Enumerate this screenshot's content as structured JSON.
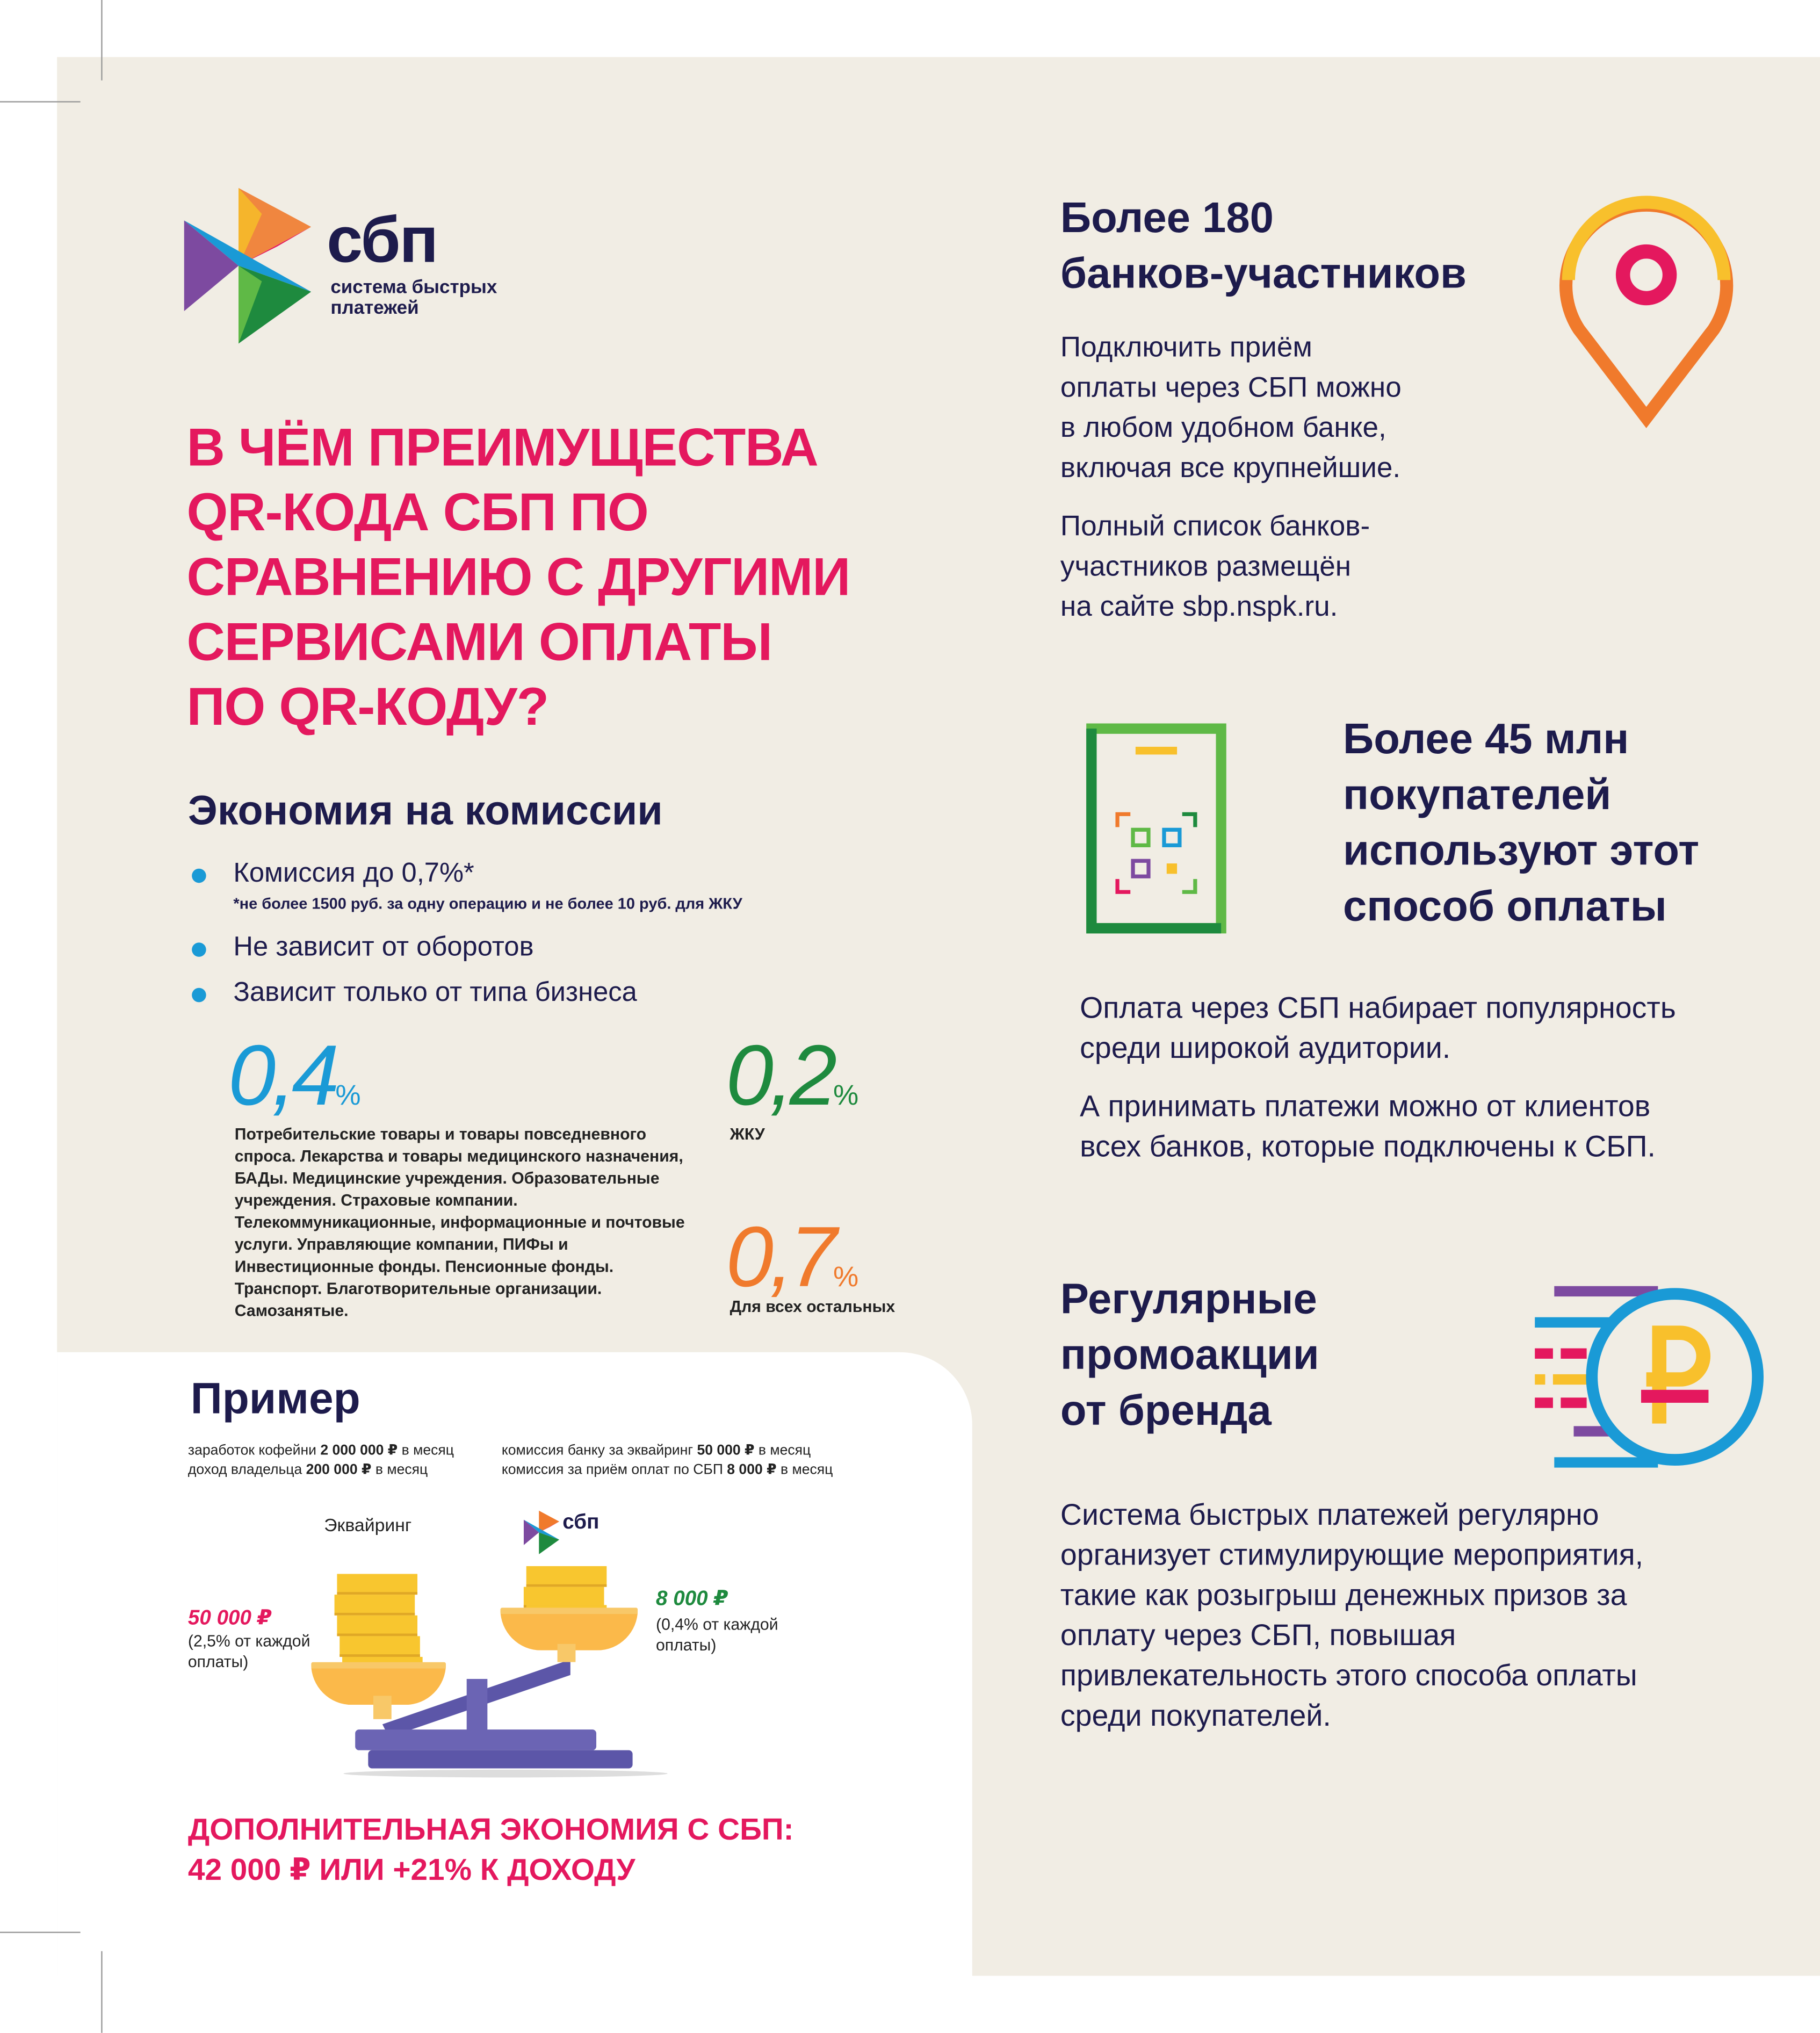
{
  "logo": {
    "name": "сбп",
    "tagline_line1": "система быстрых",
    "tagline_line2": "платежей"
  },
  "headline": [
    "В ЧЁМ ПРЕИМУЩЕСТВА",
    "QR-КОДА СБП ПО",
    "СРАВНЕНИЮ С ДРУГИМИ",
    "СЕРВИСАМИ ОПЛАТЫ",
    "ПО QR-КОДУ?"
  ],
  "savings": {
    "title": "Экономия на комиссии",
    "bullets": [
      "Комиссия до 0,7%*",
      "Не зависит от оборотов",
      "Зависит только от типа бизнеса"
    ],
    "footnote": "*не более 1500 руб. за одну операцию и не более 10 руб.  для ЖКУ",
    "rates": [
      {
        "value": "0,4",
        "unit": "%",
        "color": "#1a9ad6",
        "desc": "Потребительские товары и товары повседневного спроса. Лекарства и товары медицинского назначения, БАДы. Медицинские учреждения. Образовательные учреждения. Страховые компании. Телекоммуникационные, информационные и почтовые услуги. Управляющие компании, ПИФы и Инвестиционные фонды. Пенсионные фонды. Транспорт. Благотворительные организации. Самозанятые."
      },
      {
        "value": "0,2",
        "unit": "%",
        "color": "#1e8a3e",
        "desc": "ЖКУ"
      },
      {
        "value": "0,7",
        "unit": "%",
        "color": "#f07a2c",
        "desc": "Для всех остальных"
      }
    ]
  },
  "example": {
    "title": "Пример",
    "left_line1": [
      "заработок кофейни ",
      "2 000 000 ₽",
      " в месяц"
    ],
    "left_line2": [
      "доход владельца ",
      "200 000 ₽",
      " в месяц"
    ],
    "right_line1": [
      "комиссия банку за эквайринг ",
      "50 000 ₽",
      " в месяц"
    ],
    "right_line2": [
      "комиссия за приём оплат по СБП ",
      "8 000 ₽",
      " в месяц"
    ],
    "acquiring_label": "Эквайринг",
    "mini_logo": "сбп",
    "left_amount": "50 000 ₽",
    "left_note": "(2,5% от каждой оплаты)",
    "right_amount": "8 000 ₽",
    "right_note": "(0,4% от каждой оплаты)",
    "conclusion_line1": "ДОПОЛНИТЕЛЬНАЯ ЭКОНОМИЯ С СБП:",
    "conclusion_line2": "42 000 ₽ ИЛИ +21% К ДОХОДУ"
  },
  "banks": {
    "title": [
      "Более 180",
      "банков-участников"
    ],
    "p1": [
      "Подключить приём",
      "оплаты через СБП можно",
      "в любом удобном банке,",
      "включая все крупнейшие."
    ],
    "p2": [
      "Полный список банков-",
      "участников размещён",
      "на сайте sbp.nspk.ru."
    ],
    "icon": "location-pin-icon"
  },
  "buyers": {
    "title": [
      "Более 45 млн",
      "покупателей",
      "используют этот",
      "способ оплаты"
    ],
    "p1": [
      "Оплата через СБП набирает популярность",
      "среди широкой аудитории."
    ],
    "p2": [
      "А принимать платежи можно от клиентов",
      "всех банков, которые подключены к СБП."
    ],
    "icon": "phone-qr-icon"
  },
  "promo": {
    "title": [
      "Регулярные",
      "промоакции",
      "от бренда"
    ],
    "p": [
      "Система быстрых платежей регулярно",
      "организует стимулирующие мероприятия,",
      "такие как розыгрыш денежных призов за",
      "оплату через СБП, повышая",
      "привлекательность этого способа оплаты",
      "среди покупателей."
    ],
    "icon": "ruble-coin-icon",
    "symbol": "₽"
  },
  "colors": {
    "pink": "#e4185e",
    "navy": "#1d1b4c",
    "blue": "#1a9ad6",
    "green": "#1e8a3e",
    "orange": "#f07a2c",
    "background": "#f1ede4"
  }
}
